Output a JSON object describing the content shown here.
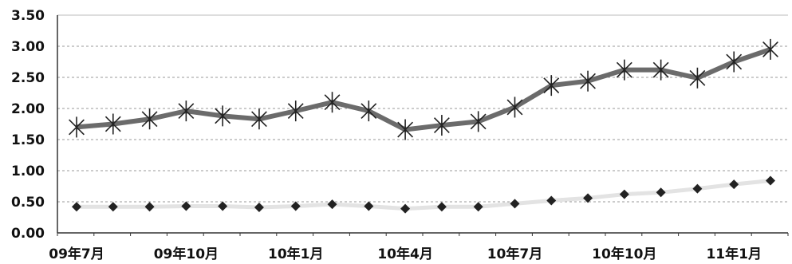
{
  "chart_data": {
    "type": "line",
    "title": "",
    "xlabel": "",
    "ylabel": "",
    "ylim": [
      0,
      3.5
    ],
    "yticks": [
      "0.00",
      "0.50",
      "1.00",
      "1.50",
      "2.00",
      "2.50",
      "3.00",
      "3.50"
    ],
    "x_tick_labels": [
      {
        "index": 0,
        "label": "09年7月"
      },
      {
        "index": 3,
        "label": "09年10月"
      },
      {
        "index": 6,
        "label": "10年1月"
      },
      {
        "index": 9,
        "label": "10年4月"
      },
      {
        "index": 12,
        "label": "10年7月"
      },
      {
        "index": 15,
        "label": "10年10月"
      },
      {
        "index": 18,
        "label": "11年1月"
      }
    ],
    "grid": true,
    "legend": "none",
    "series": [
      {
        "marker": "asterisk",
        "color": "#555555",
        "values": [
          1.7,
          1.75,
          1.83,
          1.96,
          1.88,
          1.83,
          1.96,
          2.1,
          1.96,
          1.66,
          1.73,
          1.79,
          2.02,
          2.37,
          2.44,
          2.62,
          2.62,
          2.49,
          2.75,
          2.95
        ]
      },
      {
        "marker": "diamond",
        "color": "#222222",
        "values": [
          0.42,
          0.42,
          0.42,
          0.43,
          0.43,
          0.41,
          0.43,
          0.46,
          0.43,
          0.39,
          0.42,
          0.42,
          0.47,
          0.52,
          0.56,
          0.62,
          0.65,
          0.71,
          0.78,
          0.84
        ]
      }
    ]
  }
}
